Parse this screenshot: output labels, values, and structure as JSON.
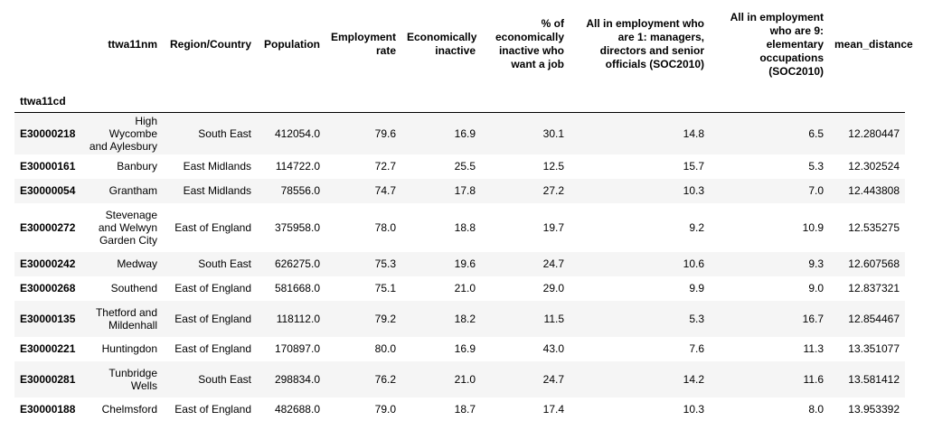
{
  "table": {
    "index_name": "ttwa11cd",
    "columns": [
      "ttwa11nm",
      "Region/Country",
      "Population",
      "Employment rate",
      "Economically inactive",
      "% of economically inactive who want a job",
      "All in employment who are 1: managers, directors and senior officials (SOC2010)",
      "All in employment who are 9: elementary occupations (SOC2010)",
      "mean_distance"
    ],
    "rows": [
      [
        "E30000218",
        "High Wycombe and Aylesbury",
        "South East",
        "412054.0",
        "79.6",
        "16.9",
        "30.1",
        "14.8",
        "6.5",
        "12.280447"
      ],
      [
        "E30000161",
        "Banbury",
        "East Midlands",
        "114722.0",
        "72.7",
        "25.5",
        "12.5",
        "15.7",
        "5.3",
        "12.302524"
      ],
      [
        "E30000054",
        "Grantham",
        "East Midlands",
        "78556.0",
        "74.7",
        "17.8",
        "27.2",
        "10.3",
        "7.0",
        "12.443808"
      ],
      [
        "E30000272",
        "Stevenage and Welwyn Garden City",
        "East of England",
        "375958.0",
        "78.0",
        "18.8",
        "19.7",
        "9.2",
        "10.9",
        "12.535275"
      ],
      [
        "E30000242",
        "Medway",
        "South East",
        "626275.0",
        "75.3",
        "19.6",
        "24.7",
        "10.6",
        "9.3",
        "12.607568"
      ],
      [
        "E30000268",
        "Southend",
        "East of England",
        "581668.0",
        "75.1",
        "21.0",
        "29.0",
        "9.9",
        "9.0",
        "12.837321"
      ],
      [
        "E30000135",
        "Thetford and Mildenhall",
        "East of England",
        "118112.0",
        "79.2",
        "18.2",
        "11.5",
        "5.3",
        "16.7",
        "12.854467"
      ],
      [
        "E30000221",
        "Huntingdon",
        "East of England",
        "170897.0",
        "80.0",
        "16.9",
        "43.0",
        "7.6",
        "11.3",
        "13.351077"
      ],
      [
        "E30000281",
        "Tunbridge Wells",
        "South East",
        "298834.0",
        "76.2",
        "21.0",
        "24.7",
        "14.2",
        "11.6",
        "13.581412"
      ],
      [
        "E30000188",
        "Chelmsford",
        "East of England",
        "482688.0",
        "79.0",
        "18.7",
        "17.4",
        "10.3",
        "8.0",
        "13.953392"
      ]
    ]
  }
}
